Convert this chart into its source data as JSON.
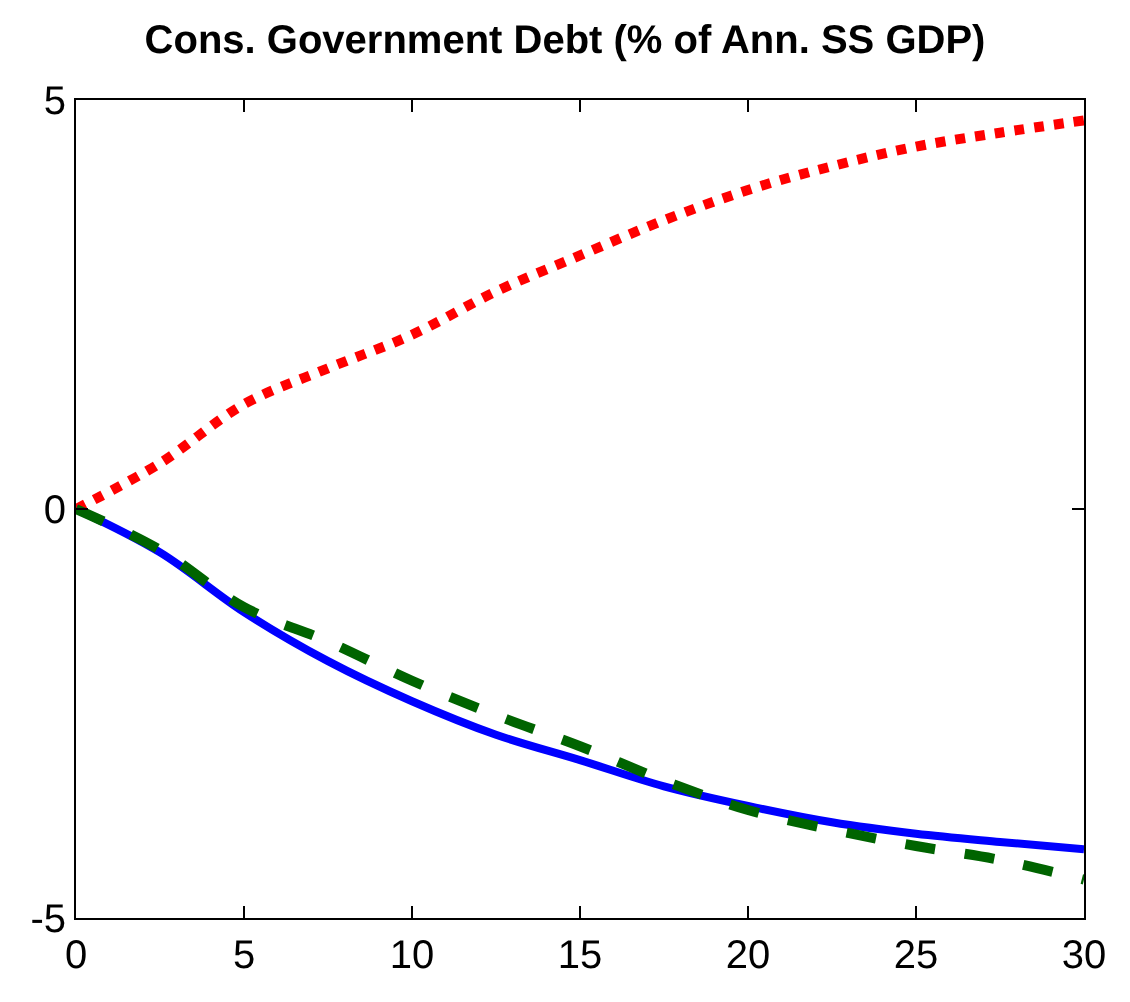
{
  "chart_data": {
    "type": "line",
    "title": "Cons. Government Debt (% of Ann. SS GDP)",
    "x": [
      0,
      2.5,
      5,
      7.5,
      10,
      12.5,
      15,
      17.5,
      20,
      22.5,
      25,
      27.5,
      30
    ],
    "series": [
      {
        "color": "#ff0000",
        "line_style": "dotted",
        "values": [
          0,
          0.56,
          1.28,
          1.72,
          2.13,
          2.66,
          3.1,
          3.53,
          3.9,
          4.19,
          4.43,
          4.6,
          4.75
        ]
      },
      {
        "color": "#0000ff",
        "line_style": "solid",
        "values": [
          0,
          -0.53,
          -1.26,
          -1.86,
          -2.35,
          -2.76,
          -3.07,
          -3.39,
          -3.63,
          -3.83,
          -3.97,
          -4.07,
          -4.16
        ]
      },
      {
        "color": "#006400",
        "line_style": "dashed",
        "values": [
          0,
          -0.5,
          -1.2,
          -1.62,
          -2.1,
          -2.52,
          -2.9,
          -3.32,
          -3.68,
          -3.92,
          -4.12,
          -4.29,
          -4.53
        ]
      }
    ],
    "xlim": [
      0,
      30
    ],
    "xticks": [
      0,
      5,
      10,
      15,
      20,
      25,
      30
    ],
    "ylim": [
      -5,
      5
    ],
    "yticks": [
      -5,
      0,
      5
    ],
    "marker": "none"
  }
}
